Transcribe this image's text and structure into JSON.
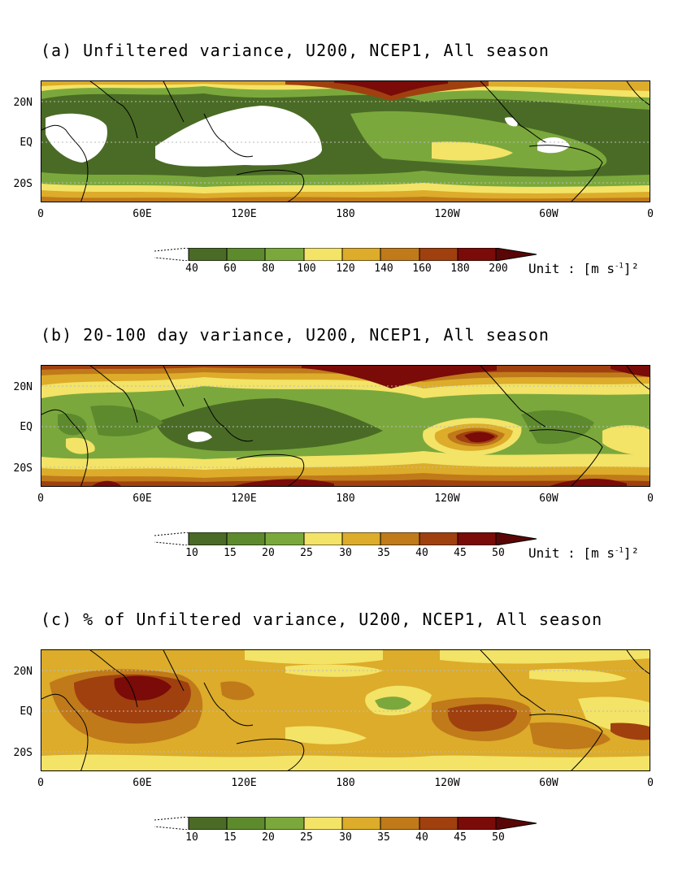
{
  "panels": [
    {
      "id": "a",
      "title": "(a) Unfiltered variance, U200, NCEP1, All season",
      "colorbar": {
        "labels": [
          "40",
          "60",
          "80",
          "100",
          "120",
          "140",
          "160",
          "180",
          "200"
        ],
        "unit": "Unit : [m s",
        "unit_sup": "-1",
        "unit_tail": "]²"
      }
    },
    {
      "id": "b",
      "title": "(b) 20-100 day variance, U200, NCEP1, All season",
      "colorbar": {
        "labels": [
          "10",
          "15",
          "20",
          "25",
          "30",
          "35",
          "40",
          "45",
          "50"
        ],
        "unit": "Unit : [m s",
        "unit_sup": "-1",
        "unit_tail": "]²"
      }
    },
    {
      "id": "c",
      "title": "(c) % of Unfiltered variance, U200, NCEP1, All season",
      "colorbar": {
        "labels": [
          "10",
          "15",
          "20",
          "25",
          "30",
          "35",
          "40",
          "45",
          "50"
        ],
        "unit": "",
        "unit_sup": "",
        "unit_tail": ""
      }
    }
  ],
  "axes": {
    "lat_labels": [
      "20N",
      "EQ",
      "20S"
    ],
    "lon_labels": [
      "0",
      "60E",
      "120E",
      "180",
      "120W",
      "60W",
      "0"
    ]
  },
  "palette": [
    "#ffffff",
    "#4a6b25",
    "#5e8a2e",
    "#7ba83c",
    "#f3e367",
    "#dcac2a",
    "#c07a1a",
    "#a0400f",
    "#7a0b08",
    "#5a0606"
  ]
}
